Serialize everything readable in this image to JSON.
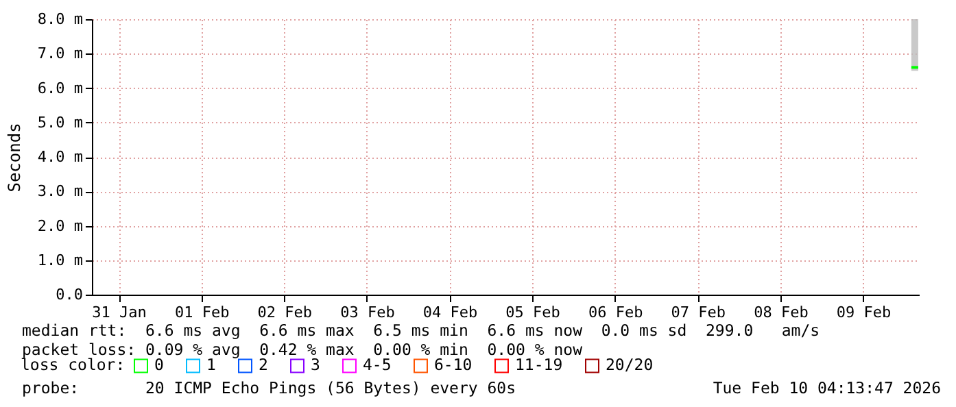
{
  "chart_data": {
    "type": "line",
    "ylabel": "Seconds",
    "legend_title": "loss color:",
    "legend": "bottom left",
    "x": [
      "2026-02-10T02:00",
      "2026-02-10T03:00",
      "2026-02-10T04:00"
    ],
    "series": [
      {
        "name": "0",
        "color": "#00ff00",
        "values": [
          6.6,
          6.6,
          6.6
        ],
        "lower": [
          6.5,
          6.5,
          6.5
        ],
        "upper": [
          8.0,
          8.0,
          8.0
        ]
      },
      {
        "name": "1",
        "color": "#00bbff",
        "values": [
          null,
          null,
          null
        ]
      },
      {
        "name": "2",
        "color": "#0055ff",
        "values": [
          null,
          null,
          null
        ]
      },
      {
        "name": "3",
        "color": "#8800ff",
        "values": [
          null,
          null,
          null
        ]
      },
      {
        "name": "4-5",
        "color": "#ff00ff",
        "values": [
          null,
          null,
          null
        ]
      },
      {
        "name": "6-10",
        "color": "#ff5500",
        "values": [
          null,
          null,
          null
        ]
      },
      {
        "name": "11-19",
        "color": "#ff0000",
        "values": [
          null,
          null,
          null
        ]
      },
      {
        "name": "20/20",
        "color": "#a10000",
        "values": [
          null,
          null,
          null
        ]
      }
    ],
    "xlim": [
      "2026-01-31T04:13",
      "2026-02-10T04:13"
    ],
    "xticks": [
      {
        "value": "2026-01-31T12:00",
        "label": "31 Jan"
      },
      {
        "value": "2026-02-01T12:00",
        "label": "01 Feb"
      },
      {
        "value": "2026-02-02T12:00",
        "label": "02 Feb"
      },
      {
        "value": "2026-02-03T12:00",
        "label": "03 Feb"
      },
      {
        "value": "2026-02-04T12:00",
        "label": "04 Feb"
      },
      {
        "value": "2026-02-05T12:00",
        "label": "05 Feb"
      },
      {
        "value": "2026-02-06T12:00",
        "label": "06 Feb"
      },
      {
        "value": "2026-02-07T12:00",
        "label": "07 Feb"
      },
      {
        "value": "2026-02-08T12:00",
        "label": "08 Feb"
      },
      {
        "value": "2026-02-09T12:00",
        "label": "09 Feb"
      }
    ],
    "ylim": [
      0,
      8
    ],
    "yticks": [
      {
        "value": 0,
        "label": "0.0"
      },
      {
        "value": 1,
        "label": "1.0 m"
      },
      {
        "value": 2,
        "label": "2.0 m"
      },
      {
        "value": 3,
        "label": "3.0 m"
      },
      {
        "value": 4,
        "label": "4.0 m"
      },
      {
        "value": 5,
        "label": "5.0 m"
      },
      {
        "value": 6,
        "label": "6.0 m"
      },
      {
        "value": 7,
        "label": "7.0 m"
      },
      {
        "value": 8,
        "label": "8.0 m"
      }
    ],
    "grid": true,
    "marker": "none",
    "annotations": [
      "median rtt:  6.6 ms avg  6.6 ms max  6.5 ms min  6.6 ms now  0.0 ms sd  299.0   am/s",
      "packet loss: 0.09 % avg  0.42 % max  0.00 % min  0.00 % now",
      "probe:       20 ICMP Echo Pings (56 Bytes) every 60s",
      "Tue Feb 10 04:13:47 2026"
    ]
  }
}
